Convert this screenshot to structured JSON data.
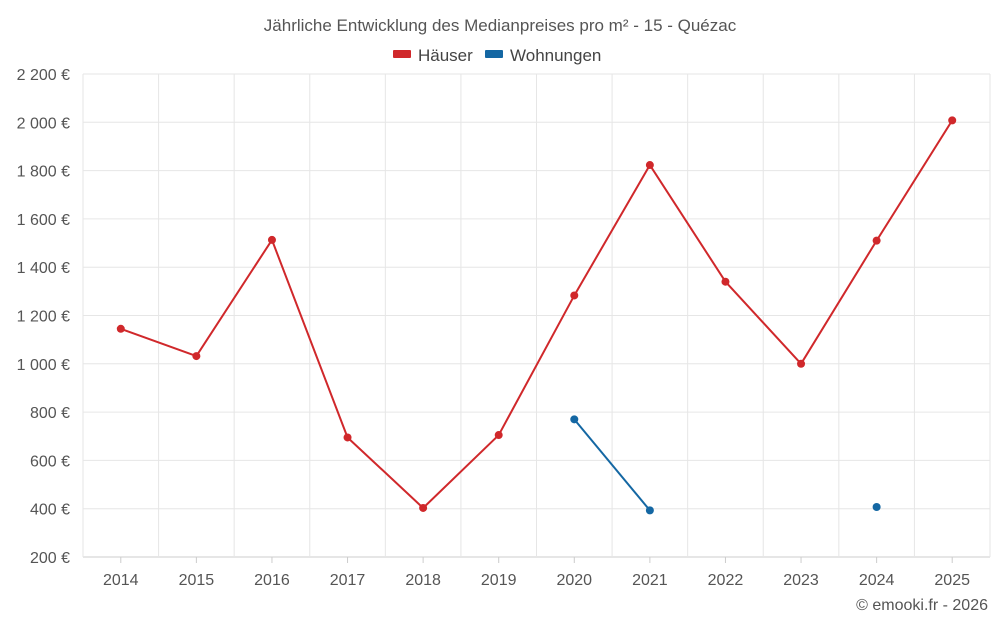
{
  "chart_data": {
    "type": "line",
    "title": "Jährliche Entwicklung des Medianpreises pro m² - 15 - Quézac",
    "categories": [
      "2014",
      "2015",
      "2016",
      "2017",
      "2018",
      "2019",
      "2020",
      "2021",
      "2022",
      "2023",
      "2024",
      "2025"
    ],
    "y_ticks": [
      "200 €",
      "400 €",
      "600 €",
      "800 €",
      "1 000 €",
      "1 200 €",
      "1 400 €",
      "1 600 €",
      "1 800 €",
      "2 000 €",
      "2 200 €"
    ],
    "ylim": [
      200,
      2200
    ],
    "grid": true,
    "legend_position": "top-center",
    "series": [
      {
        "name": "Häuser",
        "color": "#d0282b",
        "values": [
          1145,
          1032,
          1513,
          695,
          403,
          705,
          1283,
          1823,
          1340,
          1000,
          1510,
          2008
        ]
      },
      {
        "name": "Wohnungen",
        "color": "#1467a3",
        "values": [
          null,
          null,
          null,
          null,
          null,
          null,
          770,
          393,
          null,
          null,
          407,
          null
        ]
      }
    ]
  },
  "credit": "© emooki.fr - 2026"
}
